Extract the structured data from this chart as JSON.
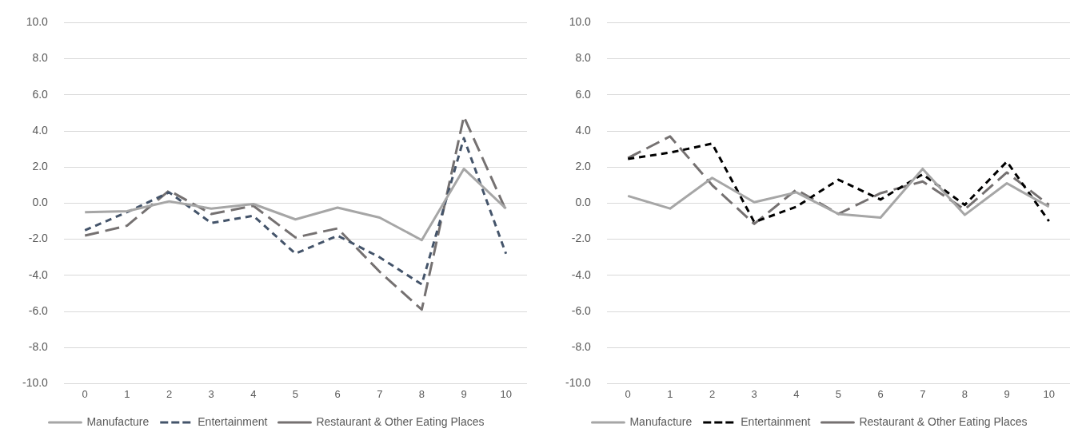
{
  "chart_data": [
    {
      "type": "line",
      "categories": [
        "0",
        "1",
        "2",
        "3",
        "4",
        "5",
        "6",
        "7",
        "8",
        "9",
        "10"
      ],
      "ylim": [
        -10,
        10
      ],
      "yticks": [
        {
          "value": -10,
          "label": "-10.0"
        },
        {
          "value": -8,
          "label": "-8.0"
        },
        {
          "value": -6,
          "label": "-6.0"
        },
        {
          "value": -4,
          "label": "-4.0"
        },
        {
          "value": -2,
          "label": "-2.0"
        },
        {
          "value": 0,
          "label": "0.0"
        },
        {
          "value": 2,
          "label": "2.0"
        },
        {
          "value": 4,
          "label": "4.0"
        },
        {
          "value": 6,
          "label": "6.0"
        },
        {
          "value": 8,
          "label": "8.0"
        },
        {
          "value": 10,
          "label": "10.0"
        }
      ],
      "grid": "y",
      "legend": "bottom",
      "marker": "none",
      "series": [
        {
          "name": "Manufacture",
          "color": "#a6a6a6",
          "line_style": "solid",
          "values": [
            -0.5,
            -0.45,
            0.1,
            -0.3,
            -0.05,
            -0.9,
            -0.25,
            -0.8,
            -2.05,
            1.9,
            -0.3
          ]
        },
        {
          "name": "Entertainment",
          "color": "#44546a",
          "line_style": "dashed",
          "values": [
            -1.5,
            -0.5,
            0.6,
            -1.1,
            -0.7,
            -2.8,
            -1.8,
            -3.0,
            -4.5,
            3.6,
            -2.8
          ]
        },
        {
          "name": "Restaurant & Other Eating Places",
          "color": "#757171",
          "line_style": "longdash",
          "values": [
            -1.8,
            -1.25,
            0.7,
            -0.6,
            -0.15,
            -1.9,
            -1.4,
            -3.8,
            -5.9,
            4.8,
            -0.4
          ]
        }
      ]
    },
    {
      "type": "line",
      "categories": [
        "0",
        "1",
        "2",
        "3",
        "4",
        "5",
        "6",
        "7",
        "8",
        "9",
        "10"
      ],
      "ylim": [
        -10,
        10
      ],
      "yticks": [
        {
          "value": -10,
          "label": "-10.0"
        },
        {
          "value": -8,
          "label": "-8.0"
        },
        {
          "value": -6,
          "label": "-6.0"
        },
        {
          "value": -4,
          "label": "-4.0"
        },
        {
          "value": -2,
          "label": "-2.0"
        },
        {
          "value": 0,
          "label": "0.0"
        },
        {
          "value": 2,
          "label": "2.0"
        },
        {
          "value": 4,
          "label": "4.0"
        },
        {
          "value": 6,
          "label": "6.0"
        },
        {
          "value": 8,
          "label": "8.0"
        },
        {
          "value": 10,
          "label": "10.0"
        }
      ],
      "grid": "y",
      "legend": "bottom",
      "marker": "none",
      "series": [
        {
          "name": "Manufacture",
          "color": "#a6a6a6",
          "line_style": "solid",
          "values": [
            0.4,
            -0.3,
            1.4,
            0.05,
            0.6,
            -0.6,
            -0.8,
            1.9,
            -0.65,
            1.1,
            -0.2
          ]
        },
        {
          "name": "Entertainment",
          "color": "#000000",
          "line_style": "dashed",
          "values": [
            2.45,
            2.8,
            3.3,
            -1.05,
            -0.2,
            1.3,
            0.2,
            1.6,
            -0.1,
            2.3,
            -1.0
          ]
        },
        {
          "name": "Restaurant & Other Eating Places",
          "color": "#757171",
          "line_style": "longdash",
          "values": [
            2.5,
            3.7,
            1.0,
            -1.15,
            0.75,
            -0.6,
            0.55,
            1.2,
            -0.35,
            1.7,
            -0.1
          ]
        }
      ]
    }
  ]
}
